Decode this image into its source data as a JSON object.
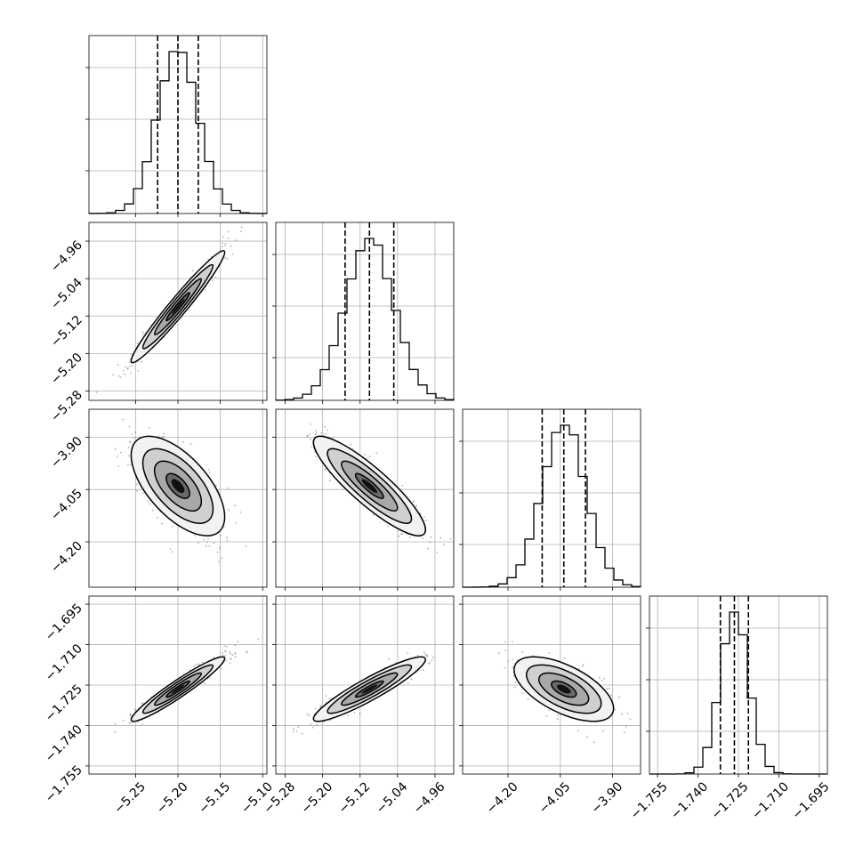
{
  "chart_data": {
    "type": "corner",
    "grid": true,
    "parameters": [
      {
        "mean": -5.2,
        "sigma": 0.024,
        "quantiles": [
          -5.224,
          -5.2,
          -5.176
        ],
        "range": [
          -5.305,
          -5.095
        ],
        "ticks": [
          -5.25,
          -5.2,
          -5.15,
          -5.1
        ],
        "tick_labels": [
          "−5.25",
          "−5.20",
          "−5.15",
          "−5.10"
        ]
      },
      {
        "mean": -5.1,
        "sigma": 0.052,
        "quantiles": [
          -5.152,
          -5.1,
          -5.048
        ],
        "range": [
          -5.3,
          -4.92
        ],
        "ticks": [
          -5.28,
          -5.2,
          -5.12,
          -5.04,
          -4.96
        ],
        "tick_labels": [
          "−5.28",
          "−5.20",
          "−5.12",
          "−5.04",
          "−4.96"
        ]
      },
      {
        "mean": -4.04,
        "sigma": 0.062,
        "quantiles": [
          -4.102,
          -4.04,
          -3.978
        ],
        "range": [
          -4.33,
          -3.82
        ],
        "ticks": [
          -4.2,
          -4.05,
          -3.9
        ],
        "tick_labels": [
          "−4.20",
          "−4.05",
          "−3.90"
        ]
      },
      {
        "mean": -1.7265,
        "sigma": 0.0052,
        "quantiles": [
          -1.7317,
          -1.7265,
          -1.7213
        ],
        "range": [
          -1.758,
          -1.692
        ],
        "ticks": [
          -1.755,
          -1.74,
          -1.725,
          -1.71,
          -1.695
        ],
        "tick_labels": [
          "−1.755",
          "−1.740",
          "−1.725",
          "−1.710",
          "−1.695"
        ]
      }
    ],
    "correlations": [
      {
        "i": 1,
        "j": 0,
        "rho": 0.97
      },
      {
        "i": 2,
        "j": 0,
        "rho": -0.62
      },
      {
        "i": 2,
        "j": 1,
        "rho": -0.88
      },
      {
        "i": 3,
        "j": 0,
        "rho": 0.95
      },
      {
        "i": 3,
        "j": 1,
        "rho": 0.92
      },
      {
        "i": 3,
        "j": 2,
        "rho": -0.6
      }
    ],
    "histogram_bins": 20,
    "contour_levels_sigma": [
      0.5,
      1.0,
      1.5,
      2.0
    ],
    "samples_per_panel": 900
  }
}
